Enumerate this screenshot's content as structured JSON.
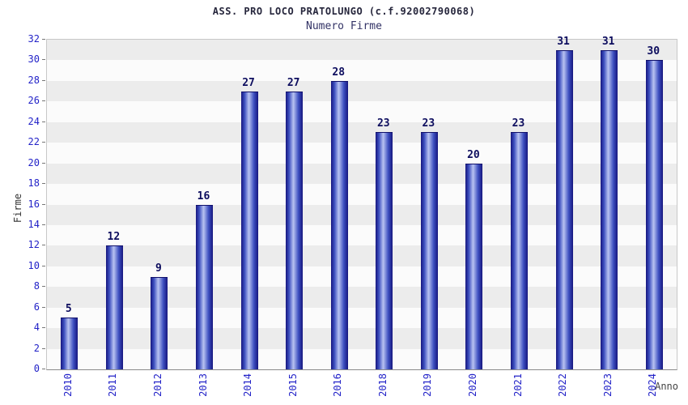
{
  "chart_data": {
    "type": "bar",
    "title": "ASS. PRO LOCO PRATOLUNGO (c.f.92002790068)",
    "subtitle": "Numero Firme",
    "xlabel": "Anno",
    "ylabel": "Firme",
    "categories": [
      "2010",
      "2011",
      "2012",
      "2013",
      "2014",
      "2015",
      "2016",
      "2018",
      "2019",
      "2020",
      "2021",
      "2022",
      "2023",
      "2024"
    ],
    "values": [
      5,
      12,
      9,
      16,
      27,
      27,
      28,
      23,
      23,
      20,
      23,
      31,
      31,
      30
    ],
    "ylim": [
      0,
      32
    ],
    "ytick_step": 2,
    "grid": true,
    "legend": "none",
    "colors": {
      "bar_edge": "#16167e",
      "bar_body": "#3d4fc0",
      "bar_highlight": "#b9c3f1",
      "value_label": "#0d0d5e",
      "tick_label": "#2323c8",
      "title": "#26263c",
      "subtitle": "#333366",
      "band_dark": "#ececec",
      "band_light": "#fbfbfb",
      "axis_title": "#333333",
      "xaxis_title": "#444444"
    }
  }
}
